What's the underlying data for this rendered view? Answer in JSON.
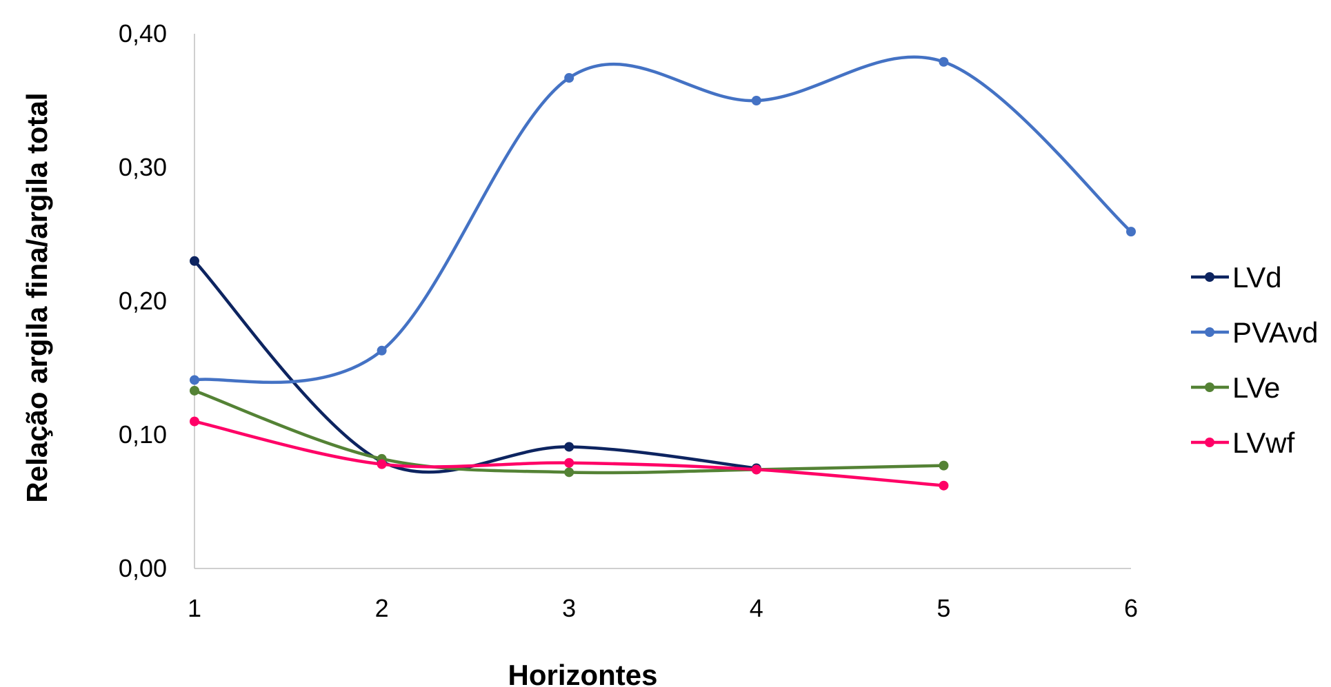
{
  "chart_data": {
    "type": "line",
    "title": "",
    "xlabel": "Horizontes",
    "ylabel": "Relação argila fina/argila total",
    "x": [
      1,
      2,
      3,
      4,
      5,
      6
    ],
    "x_tick_labels": [
      "1",
      "2",
      "3",
      "4",
      "5",
      "6"
    ],
    "xlim": [
      1,
      6
    ],
    "ylim": [
      0,
      0.4
    ],
    "y_ticks": [
      0,
      0.1,
      0.2,
      0.3,
      0.4
    ],
    "y_tick_labels": [
      "0,00",
      "0,10",
      "0,20",
      "0,30",
      "0,40"
    ],
    "grid": false,
    "smooth": true,
    "legend_position": "right",
    "series": [
      {
        "name": "LVd",
        "color": "#0d2460",
        "x": [
          1,
          2,
          3,
          4
        ],
        "values": [
          0.23,
          0.08,
          0.091,
          0.075
        ]
      },
      {
        "name": "PVAvd",
        "color": "#4472c4",
        "x": [
          1,
          2,
          3,
          4,
          5,
          6
        ],
        "values": [
          0.141,
          0.163,
          0.367,
          0.35,
          0.379,
          0.252
        ]
      },
      {
        "name": "LVe",
        "color": "#548235",
        "x": [
          1,
          2,
          3,
          4,
          5
        ],
        "values": [
          0.133,
          0.082,
          0.072,
          0.074,
          0.077
        ]
      },
      {
        "name": "LVwf",
        "color": "#ff0066",
        "x": [
          1,
          2,
          3,
          4,
          5
        ],
        "values": [
          0.11,
          0.078,
          0.079,
          0.074,
          0.062
        ]
      }
    ]
  }
}
